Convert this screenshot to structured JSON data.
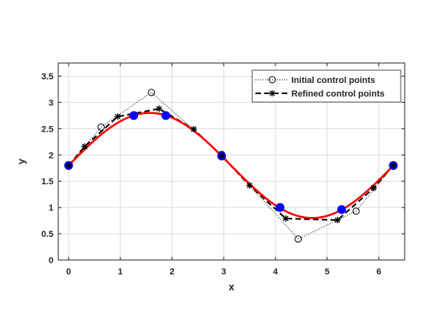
{
  "chart_data": {
    "type": "line",
    "title": "",
    "xlabel": "x",
    "ylabel": "y",
    "xlim": [
      -0.2,
      6.5
    ],
    "ylim": [
      0,
      3.75
    ],
    "xticks": [
      0,
      1,
      2,
      3,
      4,
      5,
      6
    ],
    "yticks": [
      0,
      0.5,
      1,
      1.5,
      2,
      2.5,
      3,
      3.5
    ],
    "xtick_labels": [
      "0",
      "1",
      "2",
      "3",
      "4",
      "5",
      "6"
    ],
    "ytick_labels": [
      "0",
      "0.5",
      "1",
      "1.5",
      "2",
      "2.5",
      "3",
      "3.5"
    ],
    "grid": true,
    "legend_position": "top-right",
    "series": [
      {
        "name": "Initial control points",
        "style": "dotted",
        "marker": "open-circle",
        "color": "#000000",
        "x": [
          0,
          0.63,
          1.6,
          2.96,
          4.44,
          5.56,
          6.28
        ],
        "y": [
          1.8,
          2.53,
          3.19,
          2.01,
          0.4,
          0.93,
          1.8
        ]
      },
      {
        "name": "Refined control points",
        "style": "dashed",
        "marker": "asterisk",
        "color": "#000000",
        "x": [
          0,
          0.31,
          0.95,
          1.75,
          2.42,
          2.96,
          3.5,
          4.2,
          5.2,
          5.9,
          6.28
        ],
        "y": [
          1.8,
          2.16,
          2.73,
          2.88,
          2.49,
          1.98,
          1.42,
          0.79,
          0.76,
          1.37,
          1.8
        ]
      },
      {
        "style": "solid",
        "color": "#ff0000",
        "function": "1.8 + sin(x)",
        "domain": [
          0,
          6.2832
        ]
      },
      {
        "style": "markers",
        "marker": "filled-circle",
        "color": "#0000ff",
        "x": [
          0,
          1.26,
          1.88,
          2.96,
          4.09,
          5.28,
          6.28
        ],
        "y": [
          1.8,
          2.75,
          2.75,
          1.98,
          1.0,
          0.96,
          1.8
        ]
      }
    ]
  }
}
